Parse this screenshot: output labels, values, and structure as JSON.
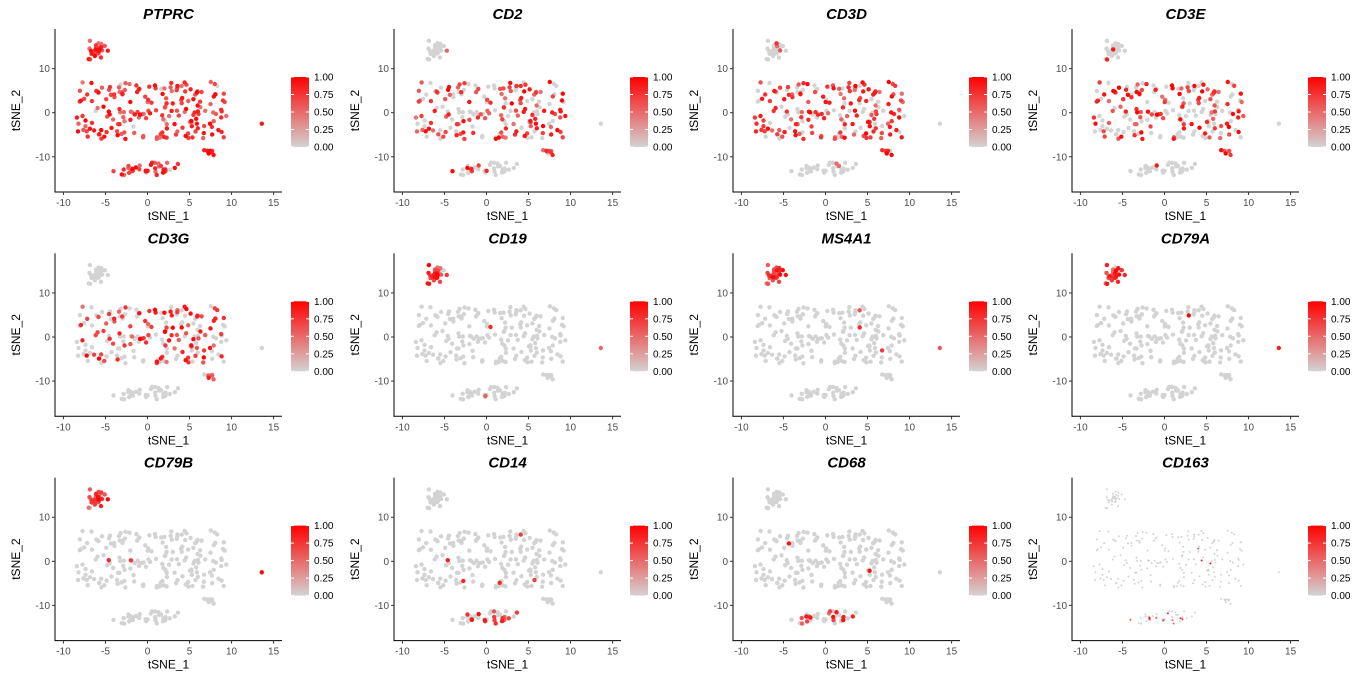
{
  "figure": {
    "columns": 4,
    "rows": 3
  },
  "chart_data": [
    {
      "type": "scatter",
      "title": "PTPRC",
      "xlabel": "tSNE_1",
      "ylabel": "tSNE_2",
      "xlim": [
        -11,
        16
      ],
      "ylim": [
        -18,
        19
      ],
      "xticks": [
        -10,
        -5,
        0,
        5,
        10,
        15
      ],
      "yticks": [
        -10,
        0,
        10
      ],
      "legend": {
        "ticks": [
          "1.00",
          "0.75",
          "0.50",
          "0.25",
          "0.00"
        ],
        "low_color": "#d3d3d3",
        "high_color": "#ff0000",
        "placement": "right"
      },
      "expression_fraction": 0.95,
      "point_size": 2.2
    },
    {
      "type": "scatter",
      "title": "CD2",
      "xlabel": "tSNE_1",
      "ylabel": "tSNE_2",
      "xlim": [
        -11,
        16
      ],
      "ylim": [
        -18,
        19
      ],
      "xticks": [
        -10,
        -5,
        0,
        5,
        10,
        15
      ],
      "yticks": [
        -10,
        0,
        10
      ],
      "legend": {
        "ticks": [
          "1.00",
          "0.75",
          "0.50",
          "0.25",
          "0.00"
        ],
        "low_color": "#d3d3d3",
        "high_color": "#ff0000",
        "placement": "right"
      },
      "expression_fraction": 0.62,
      "point_size": 2.2
    },
    {
      "type": "scatter",
      "title": "CD3D",
      "xlabel": "tSNE_1",
      "ylabel": "tSNE_2",
      "xlim": [
        -11,
        16
      ],
      "ylim": [
        -18,
        19
      ],
      "xticks": [
        -10,
        -5,
        0,
        5,
        10,
        15
      ],
      "yticks": [
        -10,
        0,
        10
      ],
      "legend": {
        "ticks": [
          "1.00",
          "0.75",
          "0.50",
          "0.25",
          "0.00"
        ],
        "low_color": "#d3d3d3",
        "high_color": "#ff0000",
        "placement": "right"
      },
      "expression_fraction": 0.7,
      "point_size": 2.2
    },
    {
      "type": "scatter",
      "title": "CD3E",
      "xlabel": "tSNE_1",
      "ylabel": "tSNE_2",
      "xlim": [
        -11,
        16
      ],
      "ylim": [
        -18,
        19
      ],
      "xticks": [
        -10,
        -5,
        0,
        5,
        10,
        15
      ],
      "yticks": [
        -10,
        0,
        10
      ],
      "legend": {
        "ticks": [
          "1.00",
          "0.75",
          "0.50",
          "0.25",
          "0.00"
        ],
        "low_color": "#d3d3d3",
        "high_color": "#ff0000",
        "placement": "right"
      },
      "expression_fraction": 0.55,
      "point_size": 2.2
    },
    {
      "type": "scatter",
      "title": "CD3G",
      "xlabel": "tSNE_1",
      "ylabel": "tSNE_2",
      "xlim": [
        -11,
        16
      ],
      "ylim": [
        -18,
        19
      ],
      "xticks": [
        -10,
        -5,
        0,
        5,
        10,
        15
      ],
      "yticks": [
        -10,
        0,
        10
      ],
      "legend": {
        "ticks": [
          "1.00",
          "0.75",
          "0.50",
          "0.25",
          "0.00"
        ],
        "low_color": "#d3d3d3",
        "high_color": "#ff0000",
        "placement": "right"
      },
      "expression_fraction": 0.5,
      "point_size": 2.2
    },
    {
      "type": "scatter",
      "title": "CD19",
      "xlabel": "tSNE_1",
      "ylabel": "tSNE_2",
      "xlim": [
        -11,
        16
      ],
      "ylim": [
        -18,
        19
      ],
      "xticks": [
        -10,
        -5,
        0,
        5,
        10,
        15
      ],
      "yticks": [
        -10,
        0,
        10
      ],
      "legend": {
        "ticks": [
          "1.00",
          "0.75",
          "0.50",
          "0.25",
          "0.00"
        ],
        "low_color": "#d3d3d3",
        "high_color": "#ff0000",
        "placement": "right"
      },
      "expression_fraction": 0.06,
      "point_size": 2.2
    },
    {
      "type": "scatter",
      "title": "MS4A1",
      "xlabel": "tSNE_1",
      "ylabel": "tSNE_2",
      "xlim": [
        -11,
        16
      ],
      "ylim": [
        -18,
        19
      ],
      "xticks": [
        -10,
        -5,
        0,
        5,
        10,
        15
      ],
      "yticks": [
        -10,
        0,
        10
      ],
      "legend": {
        "ticks": [
          "1.00",
          "0.75",
          "0.50",
          "0.25",
          "0.00"
        ],
        "low_color": "#d3d3d3",
        "high_color": "#ff0000",
        "placement": "right"
      },
      "expression_fraction": 0.1,
      "point_size": 2.2
    },
    {
      "type": "scatter",
      "title": "CD79A",
      "xlabel": "tSNE_1",
      "ylabel": "tSNE_2",
      "xlim": [
        -11,
        16
      ],
      "ylim": [
        -18,
        19
      ],
      "xticks": [
        -10,
        -5,
        0,
        5,
        10,
        15
      ],
      "yticks": [
        -10,
        0,
        10
      ],
      "legend": {
        "ticks": [
          "1.00",
          "0.75",
          "0.50",
          "0.25",
          "0.00"
        ],
        "low_color": "#d3d3d3",
        "high_color": "#ff0000",
        "placement": "right"
      },
      "expression_fraction": 0.11,
      "point_size": 2.2
    },
    {
      "type": "scatter",
      "title": "CD79B",
      "xlabel": "tSNE_1",
      "ylabel": "tSNE_2",
      "xlim": [
        -11,
        16
      ],
      "ylim": [
        -18,
        19
      ],
      "xticks": [
        -10,
        -5,
        0,
        5,
        10,
        15
      ],
      "yticks": [
        -10,
        0,
        10
      ],
      "legend": {
        "ticks": [
          "1.00",
          "0.75",
          "0.50",
          "0.25",
          "0.00"
        ],
        "low_color": "#d3d3d3",
        "high_color": "#ff0000",
        "placement": "right"
      },
      "expression_fraction": 0.08,
      "point_size": 2.2
    },
    {
      "type": "scatter",
      "title": "CD14",
      "xlabel": "tSNE_1",
      "ylabel": "tSNE_2",
      "xlim": [
        -11,
        16
      ],
      "ylim": [
        -18,
        19
      ],
      "xticks": [
        -10,
        -5,
        0,
        5,
        10,
        15
      ],
      "yticks": [
        -10,
        0,
        10
      ],
      "legend": {
        "ticks": [
          "1.00",
          "0.75",
          "0.50",
          "0.25",
          "0.00"
        ],
        "low_color": "#d3d3d3",
        "high_color": "#ff0000",
        "placement": "right"
      },
      "expression_fraction": 0.09,
      "point_size": 2.2
    },
    {
      "type": "scatter",
      "title": "CD68",
      "xlabel": "tSNE_1",
      "ylabel": "tSNE_2",
      "xlim": [
        -11,
        16
      ],
      "ylim": [
        -18,
        19
      ],
      "xticks": [
        -10,
        -5,
        0,
        5,
        10,
        15
      ],
      "yticks": [
        -10,
        0,
        10
      ],
      "legend": {
        "ticks": [
          "1.00",
          "0.75",
          "0.50",
          "0.25",
          "0.00"
        ],
        "low_color": "#d3d3d3",
        "high_color": "#ff0000",
        "placement": "right"
      },
      "expression_fraction": 0.07,
      "point_size": 2.2
    },
    {
      "type": "scatter",
      "title": "CD163",
      "xlabel": "tSNE_1",
      "ylabel": "tSNE_2",
      "xlim": [
        -11,
        16
      ],
      "ylim": [
        -18,
        19
      ],
      "xticks": [
        -10,
        -5,
        0,
        5,
        10,
        15
      ],
      "yticks": [
        -10,
        0,
        10
      ],
      "legend": {
        "ticks": [
          "1.00",
          "0.75",
          "0.50",
          "0.25",
          "0.00"
        ],
        "low_color": "#d3d3d3",
        "high_color": "#ff0000",
        "placement": "right"
      },
      "expression_fraction": 0.03,
      "point_size": 1.0
    }
  ]
}
